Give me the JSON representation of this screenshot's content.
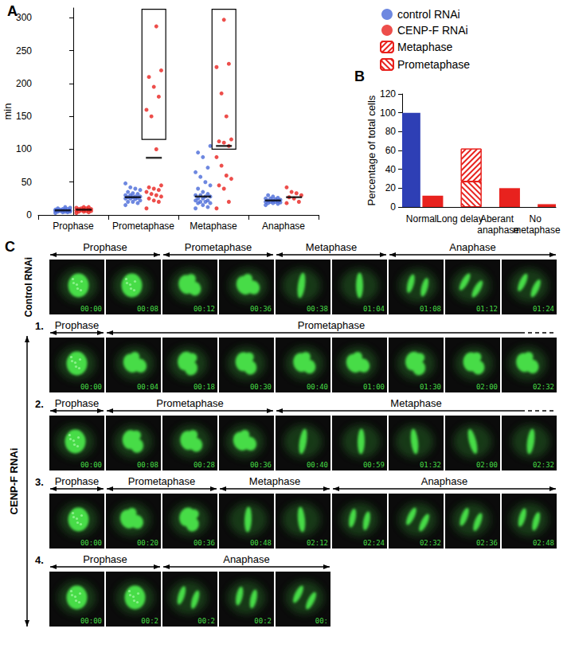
{
  "chart_data": [
    {
      "type": "scatter",
      "title": "A",
      "y_label": "min",
      "categories": [
        "Prophase",
        "Prometaphase",
        "Metaphase",
        "Anaphase"
      ],
      "ylim": [
        0,
        315
      ],
      "yticks": [
        0,
        50,
        100,
        150,
        200,
        250,
        300
      ],
      "grid": false,
      "marker": "circle",
      "series": [
        {
          "name": "control RNAi",
          "color": "#4a6ad8",
          "values": [
            [
              3,
              4,
              4,
              5,
              5,
              5,
              6,
              6,
              6,
              7,
              7,
              7,
              8,
              8,
              8,
              9,
              9,
              10,
              11,
              12
            ],
            [
              15,
              18,
              20,
              20,
              22,
              24,
              25,
              25,
              26,
              27,
              27,
              28,
              28,
              30,
              30,
              32,
              33,
              35,
              38,
              40,
              42,
              48
            ],
            [
              10,
              12,
              15,
              18,
              18,
              20,
              20,
              22,
              22,
              25,
              25,
              28,
              28,
              30,
              30,
              32,
              35,
              40,
              45,
              50,
              58,
              65,
              72,
              88,
              95,
              105
            ],
            [
              15,
              17,
              18,
              18,
              19,
              20,
              20,
              20,
              21,
              22,
              22,
              23,
              24,
              25,
              25,
              26,
              28,
              30
            ]
          ],
          "medians": [
            7,
            27,
            28,
            22
          ]
        },
        {
          "name": "CENP-F RNAi",
          "color": "#e8221e",
          "values": [
            [
              3,
              4,
              5,
              5,
              6,
              6,
              7,
              7,
              8,
              8,
              9,
              9,
              10,
              10,
              11,
              12,
              12
            ],
            [
              10,
              20,
              22,
              25,
              28,
              30,
              32,
              35,
              38,
              40,
              42,
              45,
              100,
              150,
              160,
              180,
              195,
              210,
              220,
              287
            ],
            [
              10,
              20,
              40,
              45,
              55,
              60,
              75,
              88,
              105,
              110,
              112,
              115,
              150,
              185,
              225,
              230,
              297
            ],
            [
              18,
              20,
              25,
              27,
              30,
              33,
              35,
              42
            ]
          ],
          "medians": [
            8,
            87,
            105,
            27
          ]
        }
      ],
      "boxes": [
        {
          "category": "Prometaphase",
          "series": "CENP-F RNAi",
          "range": [
            115,
            313
          ]
        },
        {
          "category": "Metaphase",
          "series": "CENP-F RNAi",
          "range": [
            100,
            313
          ]
        }
      ]
    },
    {
      "type": "bar",
      "title": "B",
      "y_label": "Percentage of total cells",
      "categories": [
        "Normal",
        "Long delay",
        "Aberant anaphase",
        "No metaphase"
      ],
      "ylim": [
        0,
        120
      ],
      "yticks": [
        0,
        20,
        40,
        60,
        80,
        100,
        120
      ],
      "grid": false,
      "stacked": true,
      "legend": "top",
      "series": [
        {
          "name": "control RNAi",
          "color": "#2e3fb5",
          "marker": "solid",
          "values": [
            100,
            null,
            null,
            null
          ]
        },
        {
          "name": "CENP-F RNAi",
          "color": "#e8221e",
          "marker": "solid",
          "values": [
            12,
            null,
            20,
            3
          ]
        },
        {
          "name": "Metaphase",
          "color": "#e8221e",
          "marker": "hatch_right",
          "values": [
            null,
            35,
            null,
            null
          ]
        },
        {
          "name": "Prometaphase",
          "color": "#e8221e",
          "marker": "hatch_left",
          "values": [
            null,
            27,
            null,
            null
          ]
        }
      ]
    }
  ],
  "panel_c": {
    "label": "C",
    "control": {
      "label": "Control RNAi",
      "phases": [
        {
          "name": "Prophase",
          "frames": [
            "00:00",
            "00:08"
          ]
        },
        {
          "name": "Prometaphase",
          "frames": [
            "00:12",
            "00:36"
          ]
        },
        {
          "name": "Metaphase",
          "frames": [
            "00:38",
            "01:04"
          ]
        },
        {
          "name": "Anaphase",
          "frames": [
            "01:08",
            "01:12",
            "01:24"
          ]
        }
      ]
    },
    "cenpf": {
      "label": "CENP-F RNAi",
      "rows": [
        {
          "number": "1.",
          "continues": true,
          "phases": [
            {
              "name": "Prophase",
              "frames": [
                "00:00"
              ]
            },
            {
              "name": "Prometaphase",
              "frames": [
                "00:04",
                "00:18",
                "00:30",
                "00:40",
                "01:00",
                "01:30",
                "02:00",
                "02:32"
              ]
            }
          ]
        },
        {
          "number": "2.",
          "continues": true,
          "phases": [
            {
              "name": "Prophase",
              "frames": [
                "00:00"
              ]
            },
            {
              "name": "Prometaphase",
              "frames": [
                "00:08",
                "00:28",
                "00:36"
              ]
            },
            {
              "name": "Metaphase",
              "frames": [
                "00:40",
                "00:59",
                "01:32",
                "02:00",
                "02:32"
              ]
            }
          ]
        },
        {
          "number": "3.",
          "continues": false,
          "phases": [
            {
              "name": "Prophase",
              "frames": [
                "00:00"
              ]
            },
            {
              "name": "Prometaphase",
              "frames": [
                "00:20",
                "00:36"
              ]
            },
            {
              "name": "Metaphase",
              "frames": [
                "00:48",
                "02:12"
              ]
            },
            {
              "name": "Anaphase",
              "frames": [
                "02:24",
                "02:32",
                "02:36",
                "02:48"
              ]
            }
          ]
        },
        {
          "number": "4.",
          "continues": false,
          "phases": [
            {
              "name": "Prophase",
              "frames": [
                "00:00",
                "00:2"
              ]
            },
            {
              "name": "Anaphase",
              "frames": [
                "00:2",
                "00:2",
                "00:"
              ]
            }
          ]
        }
      ]
    }
  }
}
